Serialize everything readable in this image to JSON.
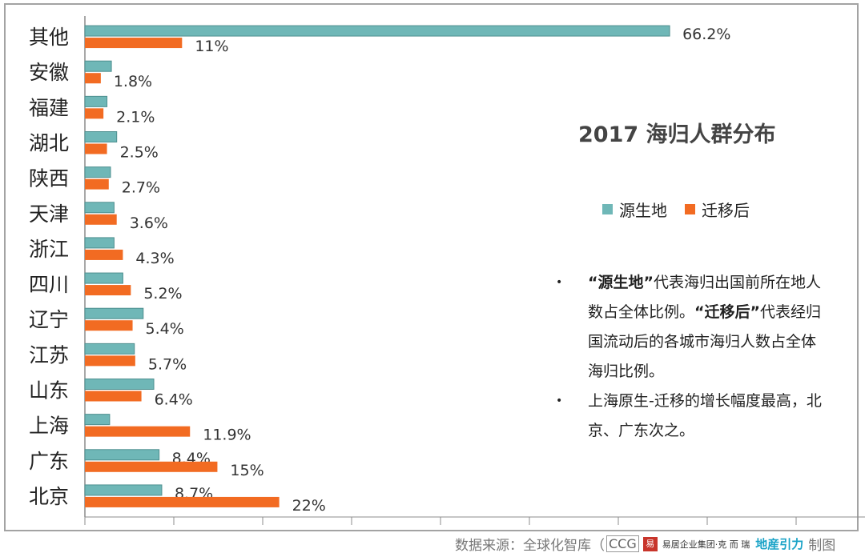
{
  "chart_data": {
    "type": "bar",
    "orientation": "horizontal",
    "title": "2017 海归人群分布",
    "categories": [
      "其他",
      "安徽",
      "福建",
      "湖北",
      "陕西",
      "天津",
      "浙江",
      "四川",
      "辽宁",
      "江苏",
      "山东",
      "上海",
      "广东",
      "北京"
    ],
    "series": [
      {
        "name": "源生地",
        "color": "#6fb7b7",
        "values": [
          66.2,
          3.0,
          2.5,
          3.6,
          2.9,
          3.3,
          3.3,
          4.3,
          6.6,
          5.6,
          7.8,
          2.8,
          8.4,
          8.7
        ],
        "labels": [
          "66.2%",
          "",
          "",
          "",
          "",
          "",
          "",
          "",
          "",
          "",
          "",
          "",
          "8.4%",
          "8.7%"
        ]
      },
      {
        "name": "迁移后",
        "color": "#f26b22",
        "values": [
          11,
          1.8,
          2.1,
          2.5,
          2.7,
          3.6,
          4.3,
          5.2,
          5.4,
          5.7,
          6.4,
          11.9,
          15,
          22
        ],
        "labels": [
          "11%",
          "1.8%",
          "2.1%",
          "2.5%",
          "2.7%",
          "3.6%",
          "4.3%",
          "5.2%",
          "5.4%",
          "5.7%",
          "6.4%",
          "11.9%",
          "15%",
          "22%"
        ]
      }
    ],
    "xlim": [
      0,
      70
    ],
    "grid": false,
    "legend": "right"
  },
  "legend": {
    "items": [
      {
        "label": "源生地",
        "color": "#6fb7b7"
      },
      {
        "label": "迁移后",
        "color": "#f26b22"
      }
    ]
  },
  "notes": {
    "bullet": "•",
    "note1_q1": "“源生地”",
    "note1_t1": "代表海归出国前所在地人数占全体比例。",
    "note1_q2": "“迁移后”",
    "note1_t2": "代表经归国流动后的各城市海归人数占全体海归比例。",
    "note2": "上海原生-迁移的增长幅度最高，北京、广东次之。"
  },
  "footer": {
    "prefix": "数据来源：全球化智库（",
    "ccg": "CCG",
    "seal": "易",
    "group": "易居企业集团·克 而 瑞",
    "brand": "地産引力",
    "suffix": "制图"
  }
}
